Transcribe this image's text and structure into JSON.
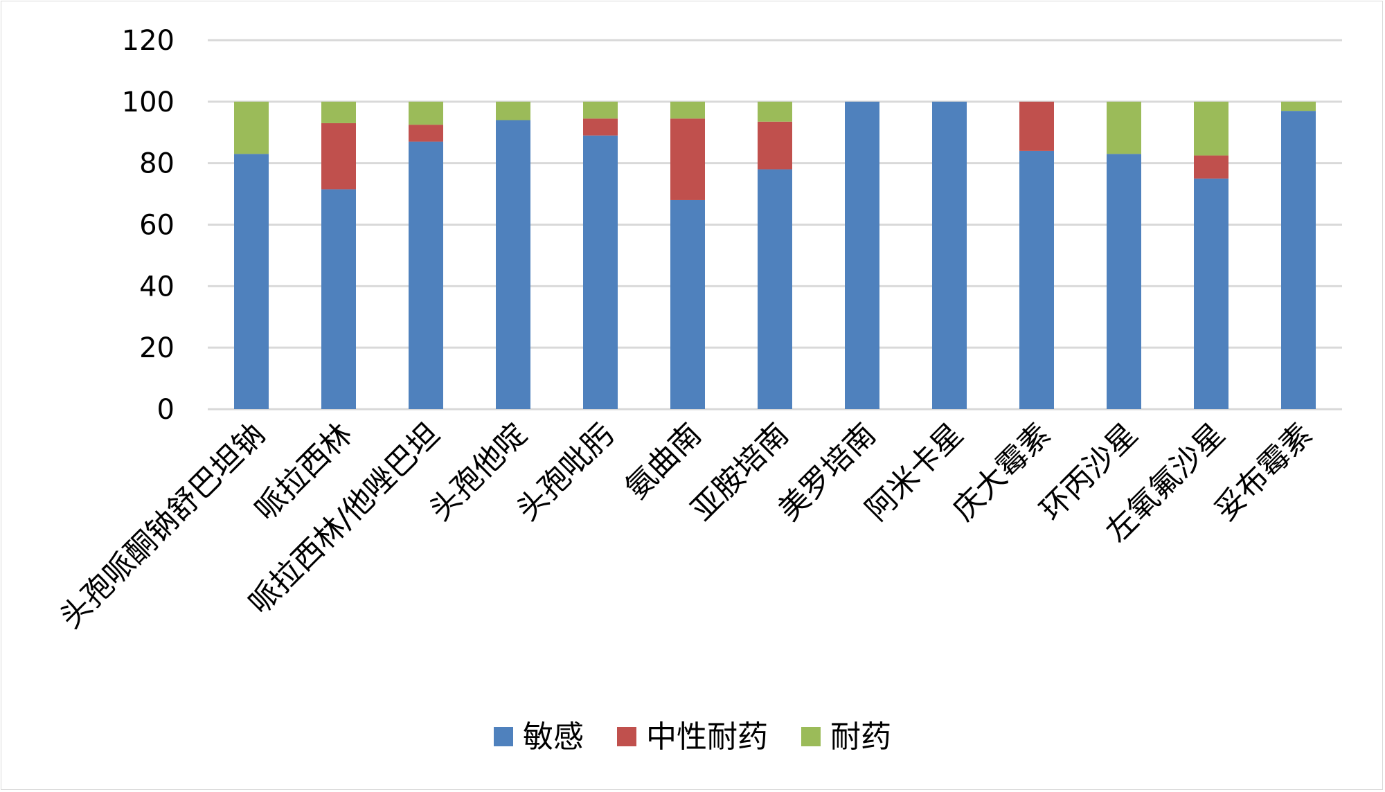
{
  "chart_data": {
    "type": "bar",
    "stacked": true,
    "categories": [
      "头孢哌酮钠舒巴坦钠",
      "哌拉西林",
      "哌拉西林/他唑巴坦",
      "头孢他啶",
      "头孢吡肟",
      "氨曲南",
      "亚胺培南",
      "美罗培南",
      "阿米卡星",
      "庆大霉素",
      "环丙沙星",
      "左氧氟沙星",
      "妥布霉素"
    ],
    "series": [
      {
        "name": "敏感",
        "color": "#4f81bd",
        "values": [
          83,
          71.5,
          87,
          94,
          89,
          68,
          78,
          100,
          100,
          84,
          83,
          75,
          97
        ]
      },
      {
        "name": "中性耐药",
        "color": "#c0504d",
        "values": [
          0,
          21.5,
          5.5,
          0,
          5.5,
          26.5,
          15.5,
          0,
          0,
          16,
          0,
          7.5,
          0
        ]
      },
      {
        "name": "耐药",
        "color": "#9bbb59",
        "values": [
          17,
          7,
          7.5,
          6,
          5.5,
          5.5,
          6.5,
          0,
          0,
          0,
          17,
          17.5,
          3
        ]
      }
    ],
    "yticks": [
      0,
      20,
      40,
      60,
      80,
      100,
      120
    ],
    "ylim": [
      0,
      120
    ],
    "grid": true,
    "legend_position": "bottom",
    "colors": {
      "grid": "#d9d9d9",
      "axis": "#d9d9d9"
    }
  }
}
